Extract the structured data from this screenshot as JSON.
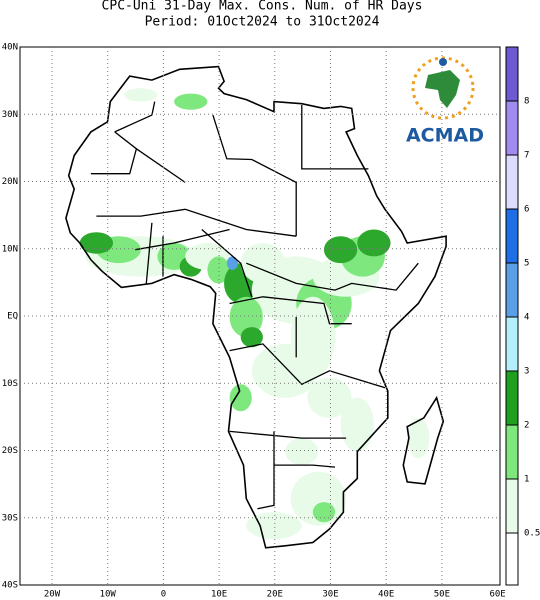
{
  "header": {
    "title": "CPC-Uni 31-Day Max. Cons. Num. of HR Days",
    "subtitle": "Period: 01Oct2024 to 31Oct2024"
  },
  "map": {
    "lat_labels": [
      "40N",
      "30N",
      "20N",
      "10N",
      "EQ",
      "10S",
      "20S",
      "30S",
      "40S"
    ],
    "lon_labels": [
      "20W",
      "10W",
      "0",
      "10E",
      "20E",
      "30E",
      "40E",
      "50E",
      "60E"
    ]
  },
  "legend": {
    "labels": [
      "0.5",
      "1",
      "2",
      "3",
      "4",
      "5",
      "6",
      "7",
      "8"
    ]
  },
  "logo": {
    "text": "ACMAD"
  }
}
